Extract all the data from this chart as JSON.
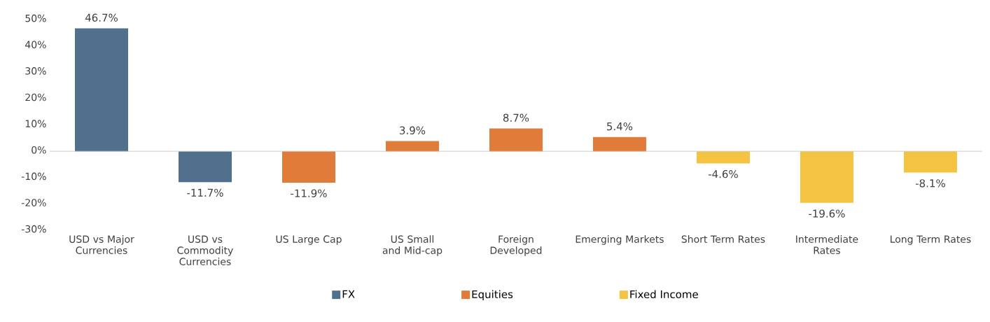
{
  "chart_data": {
    "type": "bar",
    "categories": [
      "USD vs Major Currencies",
      "USD vs Commodity Currencies",
      "US Large Cap",
      "US Small and Mid-cap",
      "Foreign Developed",
      "Emerging Markets",
      "Short Term Rates",
      "Intermediate Rates",
      "Long Term Rates"
    ],
    "series": [
      {
        "name": "FX",
        "color": "#51708d",
        "values": [
          46.7,
          -11.7,
          null,
          null,
          null,
          null,
          null,
          null,
          null
        ],
        "value_labels": [
          "46.7%",
          "-11.7%",
          null,
          null,
          null,
          null,
          null,
          null,
          null
        ]
      },
      {
        "name": "Equities",
        "color": "#e07b39",
        "values": [
          null,
          null,
          -11.9,
          3.9,
          8.7,
          5.4,
          null,
          null,
          null
        ],
        "value_labels": [
          null,
          null,
          "-11.9%",
          "3.9%",
          "8.7%",
          "5.4%",
          null,
          null,
          null
        ]
      },
      {
        "name": "Fixed Income",
        "color": "#f5c342",
        "values": [
          null,
          null,
          null,
          null,
          null,
          null,
          -4.6,
          -19.6,
          -8.1
        ],
        "value_labels": [
          null,
          null,
          null,
          null,
          null,
          null,
          "-4.6%",
          "-19.6%",
          "-8.1%"
        ]
      }
    ],
    "ylim": [
      -30,
      50
    ],
    "yticks": [
      {
        "value": -30,
        "label": "-30%"
      },
      {
        "value": -20,
        "label": "-20%"
      },
      {
        "value": -10,
        "label": "-10%"
      },
      {
        "value": 0,
        "label": "0%"
      },
      {
        "value": 10,
        "label": "10%"
      },
      {
        "value": 20,
        "label": "20%"
      },
      {
        "value": 30,
        "label": "30%"
      },
      {
        "value": 40,
        "label": "40%"
      },
      {
        "value": 50,
        "label": "50%"
      }
    ],
    "legend": "bottom"
  }
}
